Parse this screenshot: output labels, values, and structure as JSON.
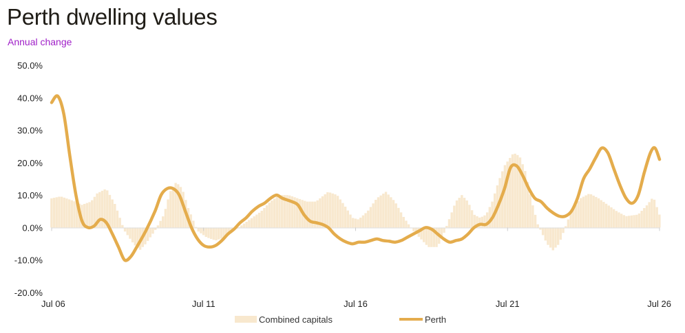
{
  "header": {
    "title": "Perth dwelling values",
    "subtitle": "Annual change"
  },
  "chart_data": {
    "type": "line",
    "title": "Perth dwelling values",
    "subtitle": "Annual change",
    "y_tick_labels": [
      "50.0%",
      "40.0%",
      "30.0%",
      "20.0%",
      "10.0%",
      "0.0%",
      "-10.0%",
      "-20.0%"
    ],
    "y_ticks": [
      50,
      40,
      30,
      20,
      10,
      0,
      -10,
      -20
    ],
    "ylim": [
      -20,
      50
    ],
    "x_tick_labels": [
      "Jul 06",
      "Jul 11",
      "Jul 16",
      "Jul 21",
      "Jul 26"
    ],
    "x_ticks": [
      2006.5,
      2011.5,
      2016.5,
      2021.5,
      2026.5
    ],
    "xlim": [
      2006.5,
      2026.5
    ],
    "legend_position": "bottom",
    "colors": {
      "combined": "#f8e8ce",
      "perth": "#e4ac4c",
      "axis": "#dddddd"
    },
    "series": [
      {
        "name": "Combined capitals",
        "kind": "bar",
        "points": [
          [
            2006.5,
            9
          ],
          [
            2006.8,
            9.6
          ],
          [
            2007.2,
            8.3
          ],
          [
            2007.5,
            7
          ],
          [
            2007.8,
            8
          ],
          [
            2008.0,
            10.5
          ],
          [
            2008.3,
            12
          ],
          [
            2008.6,
            7
          ],
          [
            2008.9,
            -1
          ],
          [
            2009.2,
            -5
          ],
          [
            2009.4,
            -7
          ],
          [
            2009.6,
            -5
          ],
          [
            2009.9,
            -1
          ],
          [
            2010.2,
            4
          ],
          [
            2010.4,
            11
          ],
          [
            2010.6,
            14
          ],
          [
            2010.8,
            12
          ],
          [
            2011.0,
            6
          ],
          [
            2011.3,
            -1
          ],
          [
            2011.6,
            -3
          ],
          [
            2011.9,
            -4
          ],
          [
            2012.2,
            -3
          ],
          [
            2012.5,
            -1
          ],
          [
            2012.8,
            1
          ],
          [
            2013.1,
            3
          ],
          [
            2013.4,
            5
          ],
          [
            2013.7,
            8
          ],
          [
            2014.0,
            10
          ],
          [
            2014.3,
            10
          ],
          [
            2014.6,
            9
          ],
          [
            2014.9,
            8
          ],
          [
            2015.2,
            8
          ],
          [
            2015.6,
            11
          ],
          [
            2015.9,
            10
          ],
          [
            2016.2,
            6
          ],
          [
            2016.4,
            3
          ],
          [
            2016.6,
            2.5
          ],
          [
            2016.9,
            5
          ],
          [
            2017.2,
            9
          ],
          [
            2017.5,
            11
          ],
          [
            2017.8,
            8
          ],
          [
            2018.1,
            3
          ],
          [
            2018.4,
            -1
          ],
          [
            2018.7,
            -4
          ],
          [
            2018.9,
            -6
          ],
          [
            2019.2,
            -6
          ],
          [
            2019.4,
            -2
          ],
          [
            2019.6,
            3
          ],
          [
            2019.8,
            8
          ],
          [
            2020.0,
            10
          ],
          [
            2020.2,
            8
          ],
          [
            2020.4,
            4
          ],
          [
            2020.6,
            3
          ],
          [
            2020.8,
            4
          ],
          [
            2021.0,
            8
          ],
          [
            2021.2,
            14
          ],
          [
            2021.4,
            19
          ],
          [
            2021.7,
            23
          ],
          [
            2021.9,
            22
          ],
          [
            2022.1,
            17
          ],
          [
            2022.3,
            8
          ],
          [
            2022.5,
            1
          ],
          [
            2022.8,
            -5
          ],
          [
            2023.0,
            -7
          ],
          [
            2023.2,
            -5
          ],
          [
            2023.4,
            0
          ],
          [
            2023.6,
            5
          ],
          [
            2023.9,
            9
          ],
          [
            2024.2,
            10.5
          ],
          [
            2024.5,
            9
          ],
          [
            2024.8,
            7
          ],
          [
            2025.1,
            5
          ],
          [
            2025.4,
            3.5
          ],
          [
            2025.8,
            4
          ],
          [
            2026.1,
            7
          ],
          [
            2026.3,
            9.5
          ],
          [
            2026.5,
            4
          ]
        ]
      },
      {
        "name": "Perth",
        "kind": "line",
        "points": [
          [
            2006.5,
            38.5
          ],
          [
            2006.7,
            40.5
          ],
          [
            2006.9,
            35
          ],
          [
            2007.1,
            22
          ],
          [
            2007.3,
            10
          ],
          [
            2007.5,
            2
          ],
          [
            2007.7,
            0
          ],
          [
            2007.9,
            0.5
          ],
          [
            2008.1,
            2.5
          ],
          [
            2008.3,
            1.5
          ],
          [
            2008.5,
            -2
          ],
          [
            2008.7,
            -6
          ],
          [
            2008.9,
            -10
          ],
          [
            2009.1,
            -9
          ],
          [
            2009.3,
            -6
          ],
          [
            2009.6,
            -1
          ],
          [
            2009.9,
            5
          ],
          [
            2010.1,
            10
          ],
          [
            2010.3,
            12
          ],
          [
            2010.5,
            12
          ],
          [
            2010.7,
            10
          ],
          [
            2010.9,
            5
          ],
          [
            2011.1,
            0
          ],
          [
            2011.3,
            -3.5
          ],
          [
            2011.5,
            -5.5
          ],
          [
            2011.7,
            -6
          ],
          [
            2011.9,
            -5.5
          ],
          [
            2012.1,
            -4
          ],
          [
            2012.3,
            -2
          ],
          [
            2012.5,
            -0.5
          ],
          [
            2012.7,
            1.5
          ],
          [
            2012.9,
            3
          ],
          [
            2013.1,
            5
          ],
          [
            2013.3,
            6.5
          ],
          [
            2013.5,
            7.5
          ],
          [
            2013.7,
            9
          ],
          [
            2013.9,
            10
          ],
          [
            2014.1,
            9
          ],
          [
            2014.4,
            8
          ],
          [
            2014.6,
            7
          ],
          [
            2014.8,
            4
          ],
          [
            2015.0,
            2
          ],
          [
            2015.2,
            1.5
          ],
          [
            2015.4,
            1
          ],
          [
            2015.6,
            0
          ],
          [
            2015.8,
            -2
          ],
          [
            2016.0,
            -3.5
          ],
          [
            2016.2,
            -4.5
          ],
          [
            2016.4,
            -5
          ],
          [
            2016.6,
            -4.5
          ],
          [
            2016.8,
            -4.5
          ],
          [
            2017.0,
            -4
          ],
          [
            2017.2,
            -3.5
          ],
          [
            2017.4,
            -4
          ],
          [
            2017.6,
            -4.2
          ],
          [
            2017.8,
            -4.5
          ],
          [
            2018.0,
            -4
          ],
          [
            2018.2,
            -3
          ],
          [
            2018.4,
            -2
          ],
          [
            2018.6,
            -1
          ],
          [
            2018.8,
            0
          ],
          [
            2019.0,
            -0.5
          ],
          [
            2019.2,
            -2
          ],
          [
            2019.4,
            -3.5
          ],
          [
            2019.6,
            -4.5
          ],
          [
            2019.8,
            -4
          ],
          [
            2020.0,
            -3.5
          ],
          [
            2020.2,
            -2
          ],
          [
            2020.4,
            0
          ],
          [
            2020.6,
            1
          ],
          [
            2020.8,
            1
          ],
          [
            2021.0,
            3
          ],
          [
            2021.2,
            7
          ],
          [
            2021.4,
            12
          ],
          [
            2021.6,
            18.5
          ],
          [
            2021.8,
            19
          ],
          [
            2022.0,
            16
          ],
          [
            2022.2,
            12
          ],
          [
            2022.4,
            9
          ],
          [
            2022.6,
            8
          ],
          [
            2022.8,
            6
          ],
          [
            2023.0,
            4.5
          ],
          [
            2023.2,
            3.5
          ],
          [
            2023.4,
            3.5
          ],
          [
            2023.6,
            5
          ],
          [
            2023.8,
            9
          ],
          [
            2024.0,
            15
          ],
          [
            2024.2,
            18
          ],
          [
            2024.4,
            21.5
          ],
          [
            2024.6,
            24.5
          ],
          [
            2024.8,
            23
          ],
          [
            2025.0,
            18
          ],
          [
            2025.2,
            13
          ],
          [
            2025.4,
            9
          ],
          [
            2025.6,
            7.5
          ],
          [
            2025.8,
            10
          ],
          [
            2026.0,
            17
          ],
          [
            2026.2,
            23
          ],
          [
            2026.35,
            24.5
          ],
          [
            2026.5,
            21
          ]
        ]
      }
    ]
  }
}
